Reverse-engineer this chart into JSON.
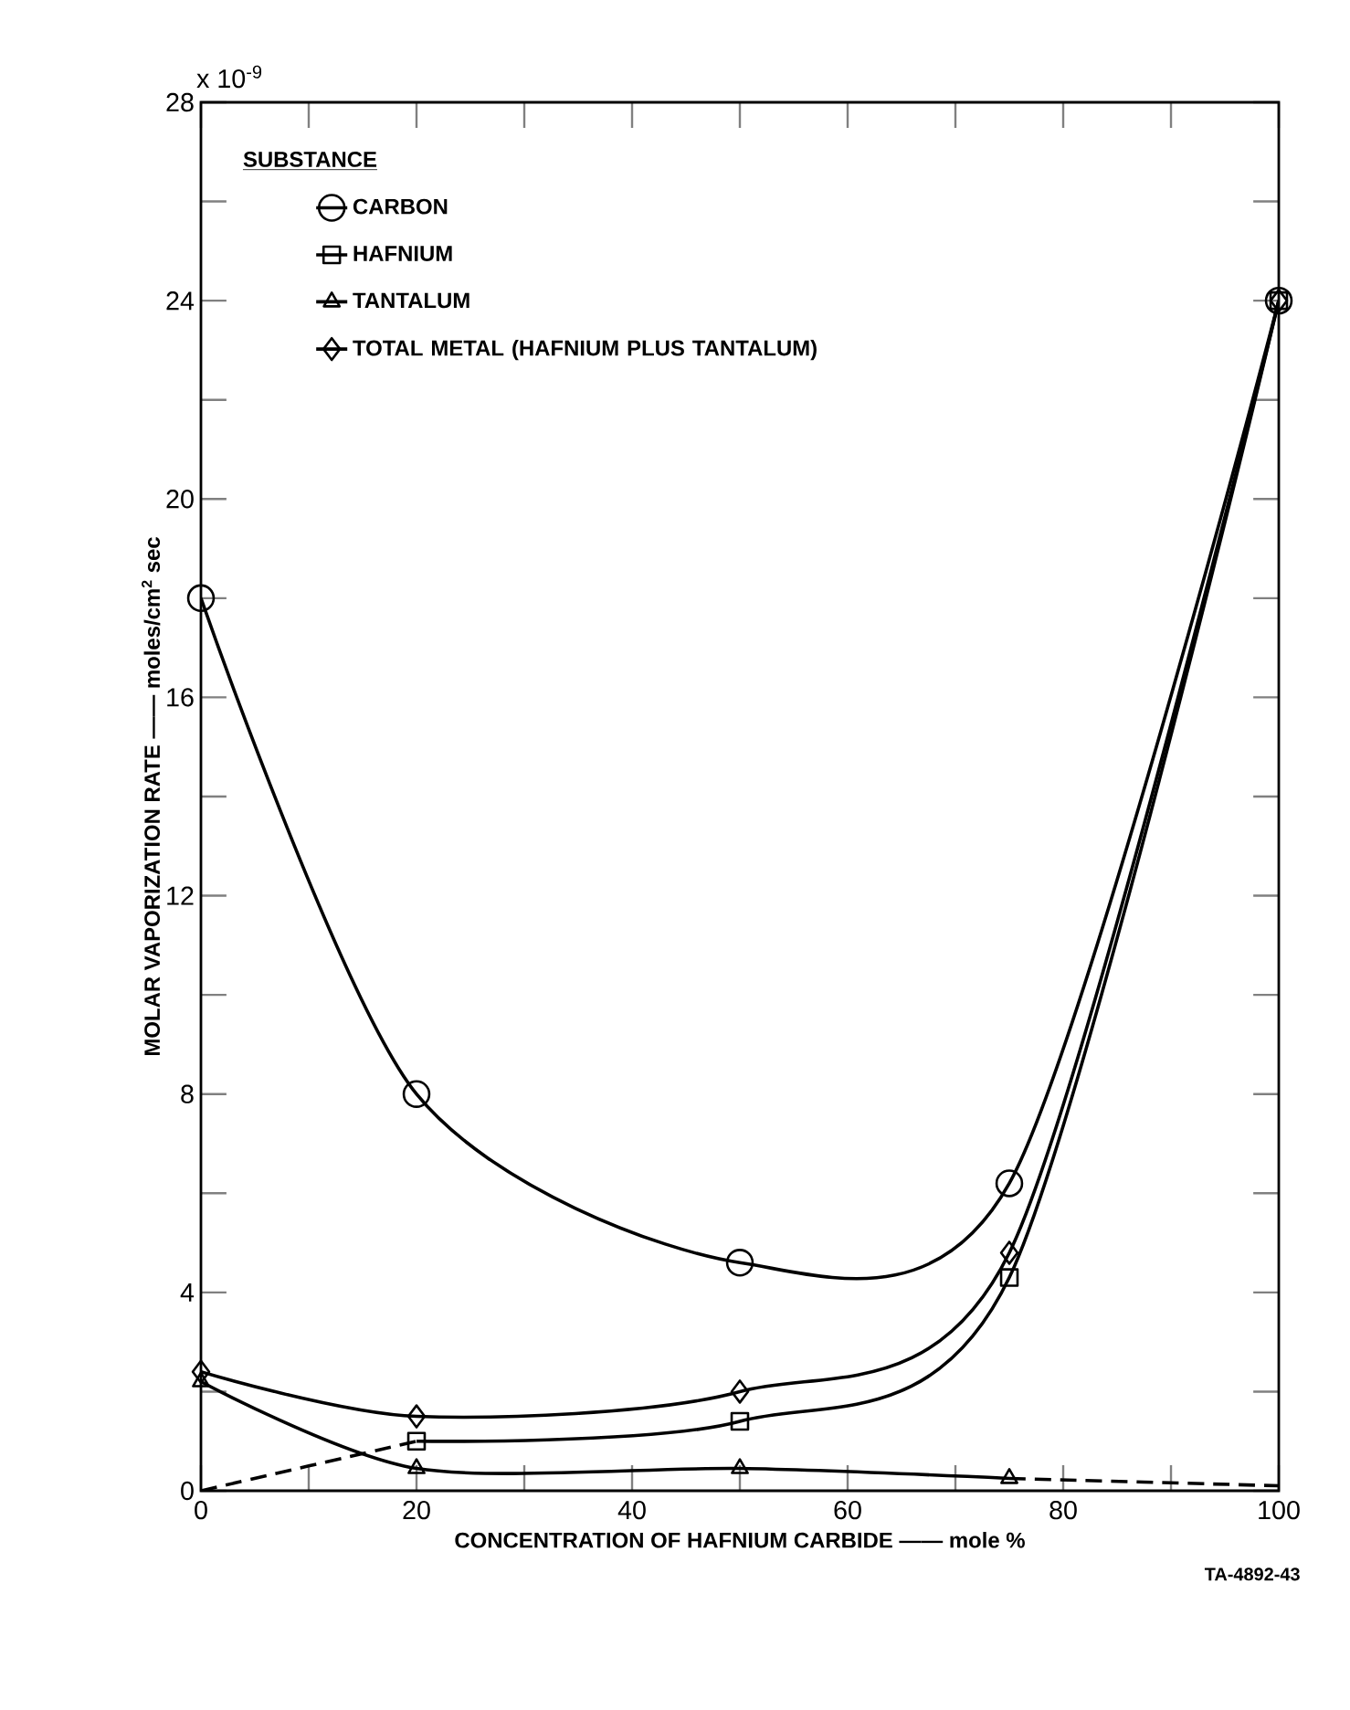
{
  "chart_data": {
    "type": "line",
    "xlabel": "CONCENTRATION OF HAFNIUM CARBIDE —— mole %",
    "ylabel": "MOLAR VAPORIZATION RATE —— moles/cm$^{2}$ sec",
    "legend_title": "SUBSTANCE",
    "legend": "top",
    "line_style": "solid",
    "grid": false,
    "xlim": [
      0,
      100
    ],
    "ylim": [
      0,
      28
    ],
    "xticks": [
      0,
      {
        "value": 10,
        "label": null
      },
      20,
      {
        "value": 30,
        "label": null
      },
      40,
      {
        "value": 50,
        "label": null
      },
      60,
      {
        "value": 70,
        "label": null
      },
      80,
      {
        "value": 90,
        "label": null
      },
      100
    ],
    "yticks": [
      0,
      {
        "value": 2,
        "label": null
      },
      4,
      {
        "value": 6,
        "label": null
      },
      8,
      {
        "value": 10,
        "label": null
      },
      12,
      {
        "value": 14,
        "label": null
      },
      16,
      {
        "value": 18,
        "label": null
      },
      20,
      {
        "value": 22,
        "label": null
      },
      24,
      {
        "value": 26,
        "label": null
      },
      28
    ],
    "series": [
      {
        "name": "CARBON",
        "color": "#000000",
        "marker": "circle",
        "x": [
          0,
          20,
          50,
          75,
          100
        ],
        "values": [
          18,
          8,
          4.6,
          6.2,
          24
        ]
      },
      {
        "name": "HAFNIUM",
        "color": "#000000",
        "marker": "square",
        "x": [
          20,
          50,
          75,
          100
        ],
        "values": [
          1.0,
          1.4,
          4.3,
          24
        ]
      },
      {
        "name": "TANTALUM",
        "color": "#000000",
        "marker": "triangle",
        "x": [
          0,
          20,
          50,
          75
        ],
        "values": [
          2.2,
          0.45,
          0.45,
          0.25
        ]
      },
      {
        "name": "TOTAL METAL (HAFNIUM PLUS TANTALUM)",
        "color": "#000000",
        "marker": "diamond",
        "x": [
          0,
          20,
          50,
          75,
          100
        ],
        "values": [
          2.4,
          1.5,
          2.0,
          4.8,
          24
        ]
      },
      {
        "color": "#000000",
        "marker": "none",
        "line_style": "dashed",
        "x": [
          0,
          20
        ],
        "values": [
          0,
          1.0
        ]
      },
      {
        "color": "#000000",
        "marker": "none",
        "line_style": "dashed",
        "x": [
          75,
          100
        ],
        "values": [
          0.25,
          0.1
        ]
      }
    ],
    "annotations": [
      "x 10$^{-9}$",
      "TA-4892-43"
    ]
  }
}
